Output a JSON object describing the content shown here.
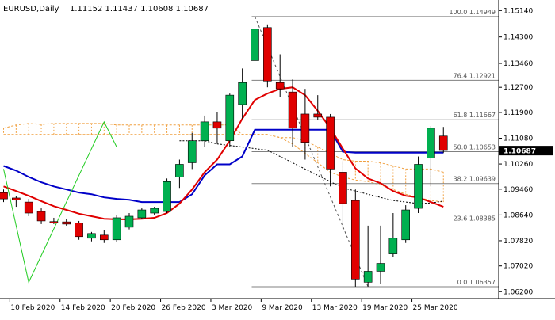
{
  "header": {
    "symbol": "EURUSD,Daily",
    "ohlc": "1.11152 1.11437 1.10608 1.10687"
  },
  "colors": {
    "bull": "#00b050",
    "bear": "#e00000",
    "blue_ma": "#0000c8",
    "red_ma": "#e00000",
    "green_line": "#22cc22",
    "fib_line": "#808080",
    "cloud": "#f0a040",
    "price_label_bg": "#000000"
  },
  "chart_data": {
    "type": "candlestick",
    "y_axis": {
      "ticks": [
        "1.15140",
        "1.14300",
        "1.13460",
        "1.12700",
        "1.11900",
        "1.11080",
        "1.10260",
        "1.09460",
        "1.08640",
        "1.07820",
        "1.07020",
        "1.06200"
      ],
      "ylim": [
        1.0598,
        1.154
      ],
      "current_price": "1.10687"
    },
    "x_axis": {
      "ticks": [
        "10 Feb 2020",
        "14 Feb 2020",
        "20 Feb 2020",
        "26 Feb 2020",
        "3 Mar 2020",
        "9 Mar 2020",
        "13 Mar 2020",
        "19 Mar 2020",
        "25 Mar 2020"
      ],
      "tick_candles": [
        1,
        5,
        9,
        13,
        17,
        21,
        25,
        29,
        33
      ]
    },
    "candles": [
      {
        "o": 1.0935,
        "h": 1.0945,
        "l": 1.0905,
        "c": 1.0915
      },
      {
        "o": 1.0918,
        "h": 1.0925,
        "l": 1.089,
        "c": 1.0912
      },
      {
        "o": 1.0905,
        "h": 1.0915,
        "l": 1.086,
        "c": 1.087
      },
      {
        "o": 1.0875,
        "h": 1.0885,
        "l": 1.0835,
        "c": 1.0845
      },
      {
        "o": 1.0843,
        "h": 1.0855,
        "l": 1.0835,
        "c": 1.084
      },
      {
        "o": 1.0842,
        "h": 1.085,
        "l": 1.083,
        "c": 1.0835
      },
      {
        "o": 1.0838,
        "h": 1.0845,
        "l": 1.0785,
        "c": 1.0795
      },
      {
        "o": 1.079,
        "h": 1.081,
        "l": 1.078,
        "c": 1.0805
      },
      {
        "o": 1.08,
        "h": 1.0815,
        "l": 1.0775,
        "c": 1.0785
      },
      {
        "o": 1.0785,
        "h": 1.0865,
        "l": 1.0778,
        "c": 1.0855
      },
      {
        "o": 1.0825,
        "h": 1.087,
        "l": 1.0818,
        "c": 1.086
      },
      {
        "o": 1.0855,
        "h": 1.0885,
        "l": 1.085,
        "c": 1.088
      },
      {
        "o": 1.087,
        "h": 1.089,
        "l": 1.0865,
        "c": 1.0885
      },
      {
        "o": 1.0875,
        "h": 1.098,
        "l": 1.087,
        "c": 1.097
      },
      {
        "o": 1.0985,
        "h": 1.104,
        "l": 1.095,
        "c": 1.1025
      },
      {
        "o": 1.103,
        "h": 1.1125,
        "l": 1.101,
        "c": 1.11
      },
      {
        "o": 1.11,
        "h": 1.118,
        "l": 1.108,
        "c": 1.116
      },
      {
        "o": 1.116,
        "h": 1.119,
        "l": 1.109,
        "c": 1.114
      },
      {
        "o": 1.11,
        "h": 1.125,
        "l": 1.108,
        "c": 1.1245
      },
      {
        "o": 1.1215,
        "h": 1.133,
        "l": 1.117,
        "c": 1.1285
      },
      {
        "o": 1.1355,
        "h": 1.1495,
        "l": 1.134,
        "c": 1.1455
      },
      {
        "o": 1.146,
        "h": 1.147,
        "l": 1.127,
        "c": 1.129
      },
      {
        "o": 1.1285,
        "h": 1.1375,
        "l": 1.124,
        "c": 1.1265
      },
      {
        "o": 1.1255,
        "h": 1.1295,
        "l": 1.108,
        "c": 1.114
      },
      {
        "o": 1.1185,
        "h": 1.1265,
        "l": 1.104,
        "c": 1.1095
      },
      {
        "o": 1.1185,
        "h": 1.1245,
        "l": 1.1165,
        "c": 1.1175
      },
      {
        "o": 1.1175,
        "h": 1.1185,
        "l": 1.0955,
        "c": 1.101
      },
      {
        "o": 1.1,
        "h": 1.1035,
        "l": 1.082,
        "c": 1.09
      },
      {
        "o": 1.091,
        "h": 1.0945,
        "l": 1.0636,
        "c": 1.066
      },
      {
        "o": 1.065,
        "h": 1.083,
        "l": 1.0636,
        "c": 1.0685
      },
      {
        "o": 1.0685,
        "h": 1.083,
        "l": 1.0645,
        "c": 1.071
      },
      {
        "o": 1.074,
        "h": 1.087,
        "l": 1.073,
        "c": 1.079
      },
      {
        "o": 1.0785,
        "h": 1.0895,
        "l": 1.0775,
        "c": 1.088
      },
      {
        "o": 1.0885,
        "h": 1.105,
        "l": 1.087,
        "c": 1.1025
      },
      {
        "o": 1.1045,
        "h": 1.1147,
        "l": 1.0955,
        "c": 1.114
      },
      {
        "o": 1.1115,
        "h": 1.1144,
        "l": 1.1061,
        "c": 1.1069
      }
    ],
    "fibonacci": [
      {
        "label": "100.0 1.14949",
        "value": 1.14949
      },
      {
        "label": "76.4 1.12921",
        "value": 1.12921
      },
      {
        "label": "61.8 1.11667",
        "value": 1.11667
      },
      {
        "label": "50.0 1.10653",
        "value": 1.10653
      },
      {
        "label": "38.2 1.09639",
        "value": 1.09639
      },
      {
        "label": "23.6 1.08385",
        "value": 1.08385
      },
      {
        "label": "0.0 1.06357",
        "value": 1.06357
      }
    ],
    "blue_line": [
      1.102,
      1.1005,
      1.0985,
      1.0968,
      1.0955,
      1.0945,
      1.0935,
      1.093,
      1.092,
      1.0915,
      1.0912,
      1.0905,
      1.0905,
      1.0905,
      1.0905,
      1.093,
      1.099,
      1.1025,
      1.1025,
      1.105,
      1.1135,
      1.1135,
      1.1135,
      1.1135,
      1.1135,
      1.1135,
      1.1135,
      1.1065,
      1.1062,
      1.1062,
      1.1062,
      1.1062,
      1.1062,
      1.1062,
      1.1062,
      1.1062
    ],
    "red_line": [
      1.0955,
      1.094,
      1.0925,
      1.0908,
      1.0892,
      1.088,
      1.0868,
      1.086,
      1.0852,
      1.085,
      1.085,
      1.0852,
      1.0855,
      1.087,
      1.09,
      1.0945,
      1.1,
      1.104,
      1.11,
      1.117,
      1.123,
      1.125,
      1.1265,
      1.127,
      1.1245,
      1.1195,
      1.114,
      1.1075,
      1.1012,
      1.098,
      1.0965,
      1.094,
      1.0925,
      1.092,
      1.0905,
      1.089
    ],
    "green_line": [
      {
        "i": 0,
        "v": 1.101
      },
      {
        "i": 2,
        "v": 1.065
      },
      {
        "i": 8,
        "v": 1.116
      },
      {
        "i": 9,
        "v": 1.108
      }
    ],
    "cloud_top": [
      1.114,
      1.115,
      1.1155,
      1.1152,
      1.1155,
      1.1155,
      1.1155,
      1.1155,
      1.1155,
      1.115,
      1.115,
      1.115,
      1.115,
      1.115,
      1.115,
      1.115,
      1.115,
      1.115,
      1.115,
      1.112,
      1.112,
      1.112,
      1.111,
      1.111,
      1.11,
      1.108,
      1.106,
      1.104,
      1.1035,
      1.1035,
      1.103,
      1.102,
      1.101,
      1.101,
      1.101,
      1.1
    ],
    "cloud_bottom": [
      1.112,
      1.112,
      1.112,
      1.112,
      1.112,
      1.112,
      1.112,
      1.112,
      1.112,
      1.112,
      1.112,
      1.112,
      1.112,
      1.112,
      1.112,
      1.112,
      1.112,
      1.112,
      1.112,
      1.112,
      1.112,
      1.112,
      1.111,
      1.109,
      1.106,
      1.103,
      1.1,
      1.0985,
      1.0975,
      1.097,
      1.096,
      1.0945,
      1.093,
      1.092,
      1.091,
      1.0905
    ],
    "lagging_dash": [
      1.11,
      1.11,
      1.11,
      1.109,
      1.1085,
      1.108,
      1.1075,
      1.107,
      1.105,
      1.103,
      1.101,
      1.099,
      1.097,
      1.095,
      1.094,
      1.093,
      1.092,
      1.091,
      1.0905,
      1.09,
      1.0902,
      1.0908
    ],
    "lagging_start": 14
  }
}
